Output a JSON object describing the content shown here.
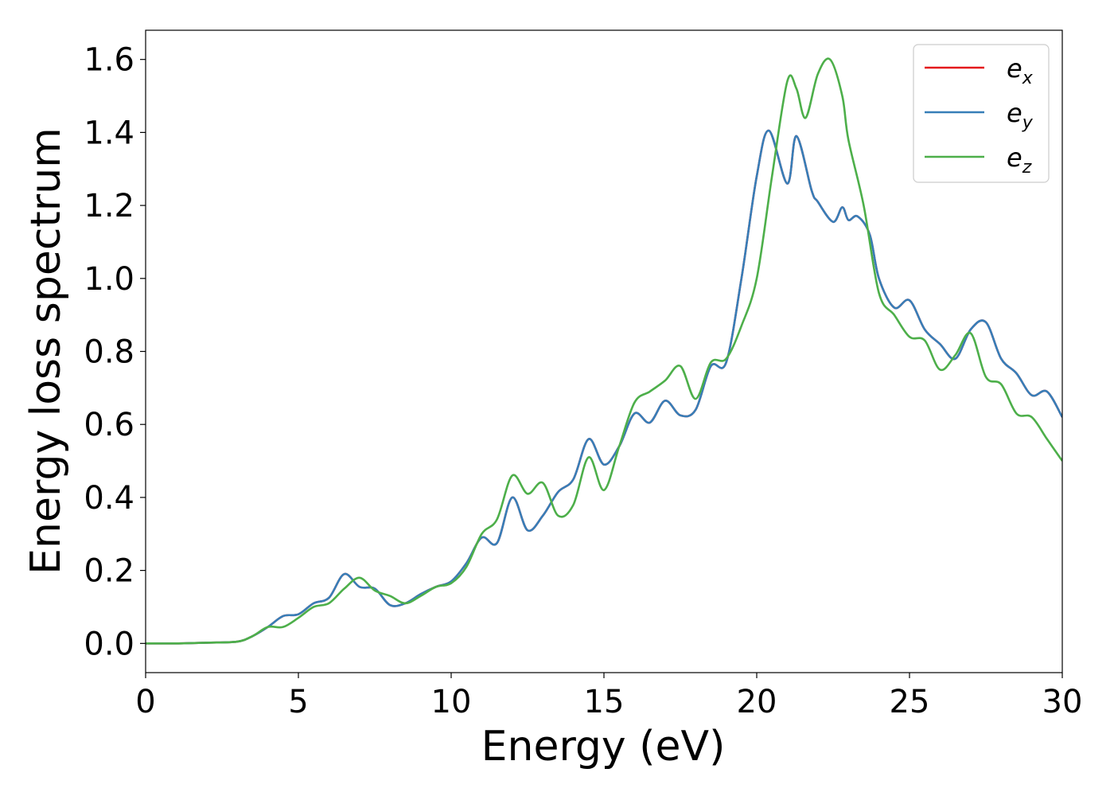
{
  "chart_data": {
    "type": "line",
    "title": "",
    "xlabel": "Energy (eV)",
    "ylabel": "Energy loss spectrum",
    "xlim": [
      0,
      30
    ],
    "ylim": [
      -0.08,
      1.68
    ],
    "xticks": [
      0,
      5,
      10,
      15,
      20,
      25,
      30
    ],
    "xtick_labels": [
      "0",
      "5",
      "10",
      "15",
      "20",
      "25",
      "30"
    ],
    "yticks": [
      0.0,
      0.2,
      0.4,
      0.6,
      0.8,
      1.0,
      1.2,
      1.4,
      1.6
    ],
    "ytick_labels": [
      "0.0",
      "0.2",
      "0.4",
      "0.6",
      "0.8",
      "1.0",
      "1.2",
      "1.4",
      "1.6"
    ],
    "grid": false,
    "legend_position": "top-right",
    "series": [
      {
        "name": "e_x",
        "legend_base": "e",
        "legend_sub": "x",
        "color": "#e41a1c",
        "x": [
          0,
          1,
          2,
          3,
          3.5,
          4,
          4.5,
          5,
          5.5,
          6,
          6.5,
          7,
          7.5,
          8,
          8.5,
          9,
          9.5,
          10,
          10.5,
          11,
          11.5,
          12,
          12.5,
          13,
          13.5,
          14,
          14.5,
          15,
          15.5,
          16,
          16.5,
          17,
          17.5,
          18,
          18.5,
          19,
          19.5,
          20,
          20.4,
          21,
          21.3,
          21.8,
          22,
          22.5,
          22.8,
          23,
          23.3,
          23.7,
          24,
          24.5,
          25,
          25.5,
          26,
          26.5,
          27,
          27.5,
          28,
          28.5,
          29,
          29.5,
          30
        ],
        "y": [
          0.0,
          0.0,
          0.002,
          0.005,
          0.02,
          0.045,
          0.075,
          0.08,
          0.11,
          0.125,
          0.19,
          0.155,
          0.15,
          0.105,
          0.11,
          0.135,
          0.155,
          0.17,
          0.22,
          0.29,
          0.275,
          0.4,
          0.31,
          0.35,
          0.415,
          0.45,
          0.56,
          0.49,
          0.54,
          0.63,
          0.605,
          0.665,
          0.625,
          0.64,
          0.76,
          0.77,
          1.0,
          1.28,
          1.405,
          1.26,
          1.39,
          1.24,
          1.21,
          1.155,
          1.195,
          1.16,
          1.17,
          1.12,
          1.0,
          0.92,
          0.94,
          0.86,
          0.82,
          0.78,
          0.86,
          0.88,
          0.78,
          0.74,
          0.68,
          0.69,
          0.62
        ]
      },
      {
        "name": "e_y",
        "legend_base": "e",
        "legend_sub": "y",
        "color": "#377eb8",
        "x": [
          0,
          1,
          2,
          3,
          3.5,
          4,
          4.5,
          5,
          5.5,
          6,
          6.5,
          7,
          7.5,
          8,
          8.5,
          9,
          9.5,
          10,
          10.5,
          11,
          11.5,
          12,
          12.5,
          13,
          13.5,
          14,
          14.5,
          15,
          15.5,
          16,
          16.5,
          17,
          17.5,
          18,
          18.5,
          19,
          19.5,
          20,
          20.4,
          21,
          21.3,
          21.8,
          22,
          22.5,
          22.8,
          23,
          23.3,
          23.7,
          24,
          24.5,
          25,
          25.5,
          26,
          26.5,
          27,
          27.5,
          28,
          28.5,
          29,
          29.5,
          30
        ],
        "y": [
          0.0,
          0.0,
          0.002,
          0.005,
          0.02,
          0.045,
          0.075,
          0.08,
          0.11,
          0.125,
          0.19,
          0.155,
          0.15,
          0.105,
          0.11,
          0.135,
          0.155,
          0.17,
          0.22,
          0.29,
          0.275,
          0.4,
          0.31,
          0.35,
          0.415,
          0.45,
          0.56,
          0.49,
          0.54,
          0.63,
          0.605,
          0.665,
          0.625,
          0.64,
          0.76,
          0.77,
          1.0,
          1.28,
          1.405,
          1.26,
          1.39,
          1.24,
          1.21,
          1.155,
          1.195,
          1.16,
          1.17,
          1.12,
          1.0,
          0.92,
          0.94,
          0.86,
          0.82,
          0.78,
          0.86,
          0.88,
          0.78,
          0.74,
          0.68,
          0.69,
          0.62
        ]
      },
      {
        "name": "e_z",
        "legend_base": "e",
        "legend_sub": "z",
        "color": "#4daf4a",
        "x": [
          0,
          1,
          2,
          3,
          3.5,
          4,
          4.5,
          5,
          5.5,
          6,
          6.5,
          7,
          7.5,
          8,
          8.5,
          9,
          9.5,
          10,
          10.5,
          11,
          11.5,
          12,
          12.5,
          13,
          13.5,
          14,
          14.5,
          15,
          15.5,
          16,
          16.5,
          17,
          17.5,
          18,
          18.5,
          19,
          19.5,
          20,
          20.5,
          21,
          21.3,
          21.6,
          22,
          22.4,
          22.8,
          23,
          23.5,
          24,
          24.5,
          25,
          25.5,
          26,
          26.5,
          27,
          27.5,
          28,
          28.5,
          29,
          29.5,
          30
        ],
        "y": [
          0.0,
          0.0,
          0.002,
          0.005,
          0.02,
          0.045,
          0.045,
          0.07,
          0.1,
          0.11,
          0.15,
          0.18,
          0.145,
          0.13,
          0.11,
          0.13,
          0.155,
          0.165,
          0.21,
          0.3,
          0.34,
          0.46,
          0.41,
          0.44,
          0.35,
          0.38,
          0.51,
          0.42,
          0.54,
          0.66,
          0.69,
          0.72,
          0.76,
          0.67,
          0.77,
          0.78,
          0.87,
          1.0,
          1.28,
          1.54,
          1.52,
          1.44,
          1.56,
          1.6,
          1.5,
          1.38,
          1.2,
          0.96,
          0.9,
          0.84,
          0.83,
          0.75,
          0.79,
          0.85,
          0.73,
          0.71,
          0.63,
          0.62,
          0.56,
          0.5
        ]
      }
    ]
  }
}
